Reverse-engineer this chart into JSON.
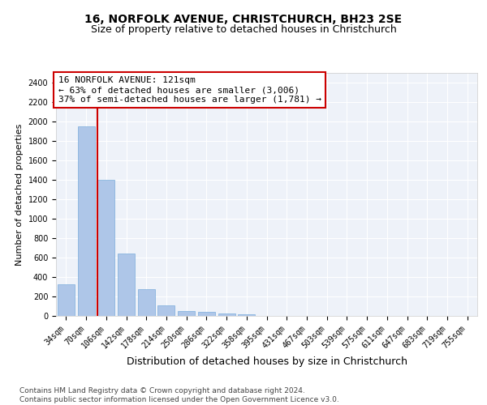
{
  "title1": "16, NORFOLK AVENUE, CHRISTCHURCH, BH23 2SE",
  "title2": "Size of property relative to detached houses in Christchurch",
  "xlabel": "Distribution of detached houses by size in Christchurch",
  "ylabel": "Number of detached properties",
  "categories": [
    "34sqm",
    "70sqm",
    "106sqm",
    "142sqm",
    "178sqm",
    "214sqm",
    "250sqm",
    "286sqm",
    "322sqm",
    "358sqm",
    "395sqm",
    "431sqm",
    "467sqm",
    "503sqm",
    "539sqm",
    "575sqm",
    "611sqm",
    "647sqm",
    "683sqm",
    "719sqm",
    "755sqm"
  ],
  "values": [
    325,
    1950,
    1400,
    640,
    275,
    105,
    50,
    38,
    28,
    20,
    0,
    0,
    0,
    0,
    0,
    0,
    0,
    0,
    0,
    0,
    0
  ],
  "bar_color": "#aec6e8",
  "bar_edge_color": "#7aaddb",
  "background_color": "#eef2f9",
  "grid_color": "#ffffff",
  "vline_color": "#cc0000",
  "annotation_text": "16 NORFOLK AVENUE: 121sqm\n← 63% of detached houses are smaller (3,006)\n37% of semi-detached houses are larger (1,781) →",
  "annotation_box_color": "#ffffff",
  "annotation_box_edge": "#cc0000",
  "ylim": [
    0,
    2500
  ],
  "yticks": [
    0,
    200,
    400,
    600,
    800,
    1000,
    1200,
    1400,
    1600,
    1800,
    2000,
    2200,
    2400
  ],
  "footnote": "Contains HM Land Registry data © Crown copyright and database right 2024.\nContains public sector information licensed under the Open Government Licence v3.0.",
  "title1_fontsize": 10,
  "title2_fontsize": 9,
  "xlabel_fontsize": 9,
  "ylabel_fontsize": 8,
  "tick_fontsize": 7,
  "annotation_fontsize": 8,
  "footnote_fontsize": 6.5
}
